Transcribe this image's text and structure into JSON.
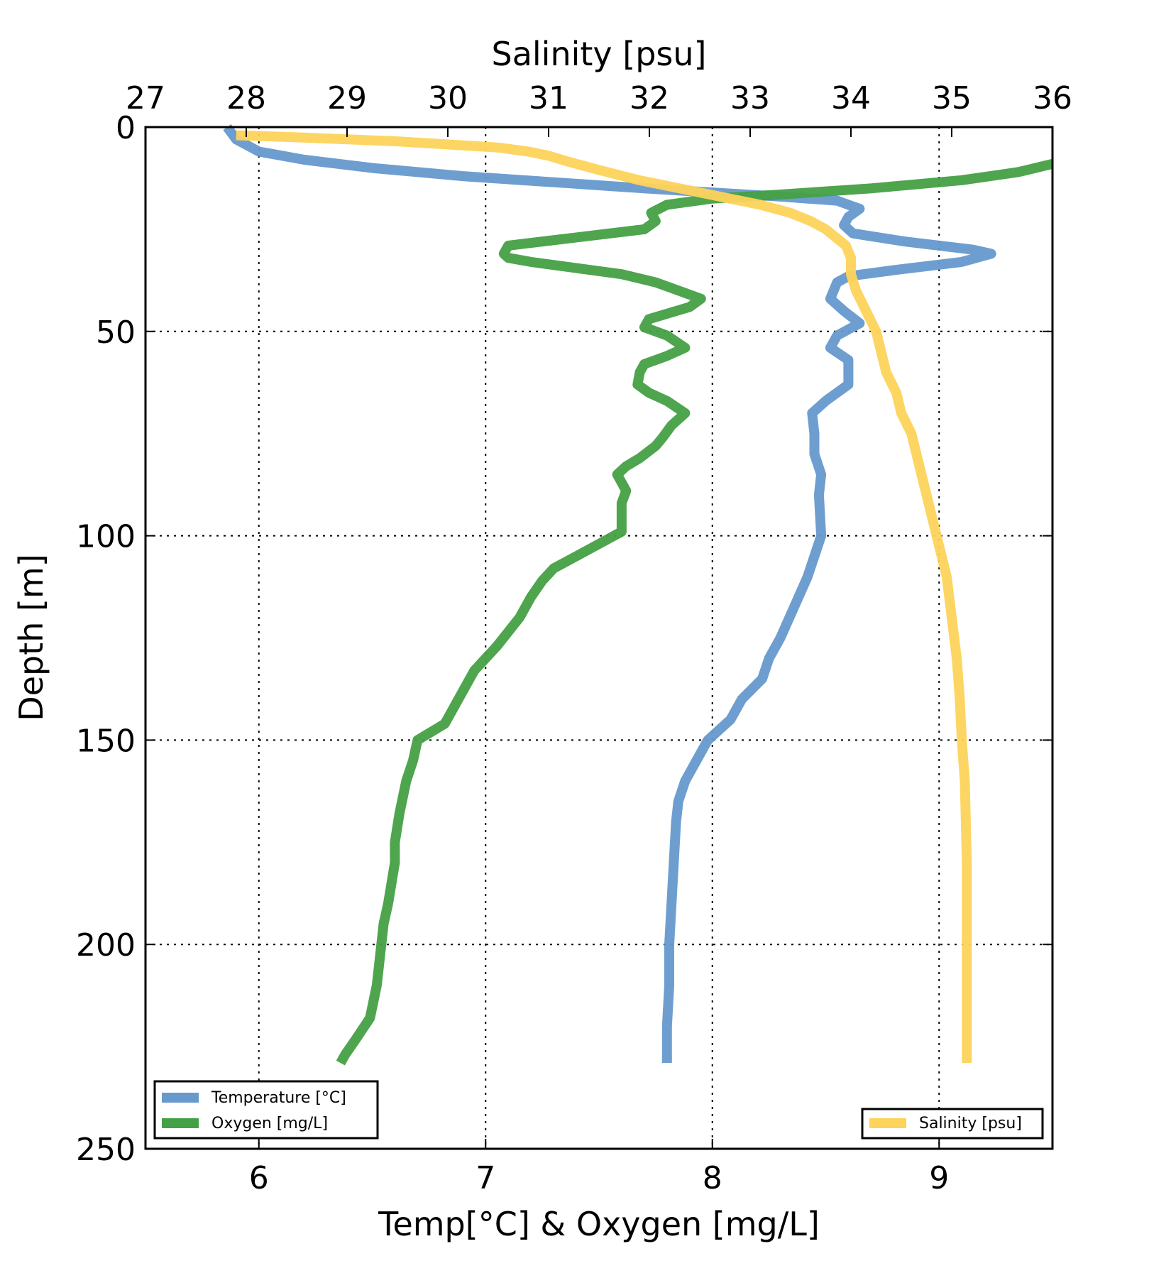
{
  "chart_data": {
    "type": "line",
    "title": "",
    "ylabel": "Depth [m]",
    "ylim": [
      0,
      250
    ],
    "y_inverted": true,
    "yticks": [
      "0",
      "50",
      "100",
      "150",
      "200",
      "250"
    ],
    "xlabel_bottom": "Temp[°C] & Oxygen [mg/L]",
    "xlim_bottom": [
      5.5,
      9.5
    ],
    "xticks_bottom": [
      "6",
      "7",
      "8",
      "9"
    ],
    "xlabel_top": "Salinity [psu]",
    "xlim_top": [
      27,
      36
    ],
    "xticks_top": [
      "27",
      "28",
      "29",
      "30",
      "31",
      "32",
      "33",
      "34",
      "35",
      "36"
    ],
    "grid": true,
    "legend_left": {
      "placement": "lower-left",
      "entries": [
        "Temperature [°C]",
        "Oxygen [mg/L]"
      ]
    },
    "legend_right": {
      "placement": "lower-right",
      "entries": [
        "Salinity [psu]"
      ]
    },
    "series": [
      {
        "name": "Temperature [°C]",
        "axis": "bottom",
        "color": "#6699cc",
        "points": [
          [
            5.86,
            0
          ],
          [
            5.9,
            3
          ],
          [
            6.0,
            6
          ],
          [
            6.2,
            8
          ],
          [
            6.5,
            10
          ],
          [
            6.9,
            12
          ],
          [
            7.3,
            13.5
          ],
          [
            7.7,
            15
          ],
          [
            8.0,
            16
          ],
          [
            8.3,
            17
          ],
          [
            8.55,
            18
          ],
          [
            8.6,
            19
          ],
          [
            8.65,
            20
          ],
          [
            8.6,
            22
          ],
          [
            8.58,
            24
          ],
          [
            8.62,
            26
          ],
          [
            8.85,
            28
          ],
          [
            9.15,
            30
          ],
          [
            9.23,
            31
          ],
          [
            9.1,
            33
          ],
          [
            8.8,
            35
          ],
          [
            8.6,
            36.5
          ],
          [
            8.55,
            38
          ],
          [
            8.52,
            42
          ],
          [
            8.58,
            45
          ],
          [
            8.65,
            48
          ],
          [
            8.55,
            51
          ],
          [
            8.52,
            54
          ],
          [
            8.6,
            57
          ],
          [
            8.6,
            60
          ],
          [
            8.6,
            63
          ],
          [
            8.5,
            67
          ],
          [
            8.44,
            70
          ],
          [
            8.45,
            75
          ],
          [
            8.45,
            80
          ],
          [
            8.48,
            85
          ],
          [
            8.47,
            90
          ],
          [
            8.48,
            100
          ],
          [
            8.45,
            105
          ],
          [
            8.42,
            110
          ],
          [
            8.38,
            115
          ],
          [
            8.34,
            120
          ],
          [
            8.3,
            125
          ],
          [
            8.25,
            130
          ],
          [
            8.22,
            135
          ],
          [
            8.13,
            140
          ],
          [
            8.08,
            145
          ],
          [
            7.98,
            150
          ],
          [
            7.93,
            155
          ],
          [
            7.88,
            160
          ],
          [
            7.85,
            165
          ],
          [
            7.84,
            170
          ],
          [
            7.83,
            180
          ],
          [
            7.82,
            190
          ],
          [
            7.81,
            200
          ],
          [
            7.81,
            210
          ],
          [
            7.8,
            220
          ],
          [
            7.8,
            229
          ]
        ]
      },
      {
        "name": "Oxygen [mg/L]",
        "axis": "bottom",
        "color": "#44a044",
        "points": [
          [
            9.5,
            9
          ],
          [
            9.35,
            11
          ],
          [
            9.1,
            13
          ],
          [
            8.7,
            15
          ],
          [
            8.3,
            16.5
          ],
          [
            8.0,
            17.5
          ],
          [
            7.8,
            19
          ],
          [
            7.73,
            21
          ],
          [
            7.75,
            23
          ],
          [
            7.7,
            25
          ],
          [
            7.4,
            27
          ],
          [
            7.1,
            29
          ],
          [
            7.08,
            31
          ],
          [
            7.1,
            32
          ],
          [
            7.2,
            33
          ],
          [
            7.6,
            36
          ],
          [
            7.75,
            38
          ],
          [
            7.85,
            40
          ],
          [
            7.95,
            42
          ],
          [
            7.9,
            44
          ],
          [
            7.72,
            47
          ],
          [
            7.7,
            49
          ],
          [
            7.8,
            51
          ],
          [
            7.88,
            54
          ],
          [
            7.8,
            56
          ],
          [
            7.7,
            58
          ],
          [
            7.68,
            60
          ],
          [
            7.67,
            63
          ],
          [
            7.72,
            65
          ],
          [
            7.8,
            67
          ],
          [
            7.88,
            70
          ],
          [
            7.82,
            73
          ],
          [
            7.78,
            76
          ],
          [
            7.75,
            78
          ],
          [
            7.68,
            81
          ],
          [
            7.62,
            83
          ],
          [
            7.58,
            85
          ],
          [
            7.62,
            89
          ],
          [
            7.6,
            92
          ],
          [
            7.6,
            96
          ],
          [
            7.6,
            99
          ],
          [
            7.5,
            102
          ],
          [
            7.4,
            105
          ],
          [
            7.3,
            108
          ],
          [
            7.25,
            111
          ],
          [
            7.2,
            115
          ],
          [
            7.15,
            120
          ],
          [
            7.05,
            127
          ],
          [
            6.95,
            133
          ],
          [
            6.88,
            140
          ],
          [
            6.82,
            146
          ],
          [
            6.7,
            150
          ],
          [
            6.68,
            155
          ],
          [
            6.65,
            160
          ],
          [
            6.62,
            168
          ],
          [
            6.6,
            175
          ],
          [
            6.6,
            180
          ],
          [
            6.57,
            190
          ],
          [
            6.55,
            195
          ],
          [
            6.53,
            205
          ],
          [
            6.52,
            210
          ],
          [
            6.49,
            218
          ],
          [
            6.43,
            223
          ],
          [
            6.38,
            227
          ],
          [
            6.36,
            229
          ]
        ]
      },
      {
        "name": "Salinity [psu]",
        "axis": "top",
        "color": "#fdd35a",
        "points": [
          [
            27.9,
            2
          ],
          [
            28.5,
            2.5
          ],
          [
            29.5,
            3.5
          ],
          [
            30.5,
            5
          ],
          [
            30.8,
            6
          ],
          [
            31.0,
            7
          ],
          [
            31.2,
            8.5
          ],
          [
            31.5,
            10.5
          ],
          [
            31.9,
            13
          ],
          [
            32.3,
            15
          ],
          [
            32.7,
            17
          ],
          [
            33.1,
            19
          ],
          [
            33.4,
            21
          ],
          [
            33.6,
            23
          ],
          [
            33.75,
            25
          ],
          [
            33.85,
            27
          ],
          [
            33.95,
            29
          ],
          [
            34.0,
            32
          ],
          [
            34.0,
            36
          ],
          [
            34.05,
            40
          ],
          [
            34.15,
            45
          ],
          [
            34.25,
            50
          ],
          [
            34.3,
            55
          ],
          [
            34.35,
            60
          ],
          [
            34.45,
            65
          ],
          [
            34.5,
            70
          ],
          [
            34.6,
            75
          ],
          [
            34.65,
            80
          ],
          [
            34.7,
            85
          ],
          [
            34.75,
            90
          ],
          [
            34.8,
            95
          ],
          [
            34.85,
            100
          ],
          [
            34.9,
            105
          ],
          [
            34.95,
            110
          ],
          [
            35.0,
            120
          ],
          [
            35.05,
            130
          ],
          [
            35.08,
            140
          ],
          [
            35.1,
            150
          ],
          [
            35.13,
            160
          ],
          [
            35.14,
            170
          ],
          [
            35.15,
            180
          ],
          [
            35.15,
            190
          ],
          [
            35.15,
            200
          ],
          [
            35.15,
            210
          ],
          [
            35.15,
            220
          ],
          [
            35.15,
            229
          ]
        ]
      }
    ]
  }
}
